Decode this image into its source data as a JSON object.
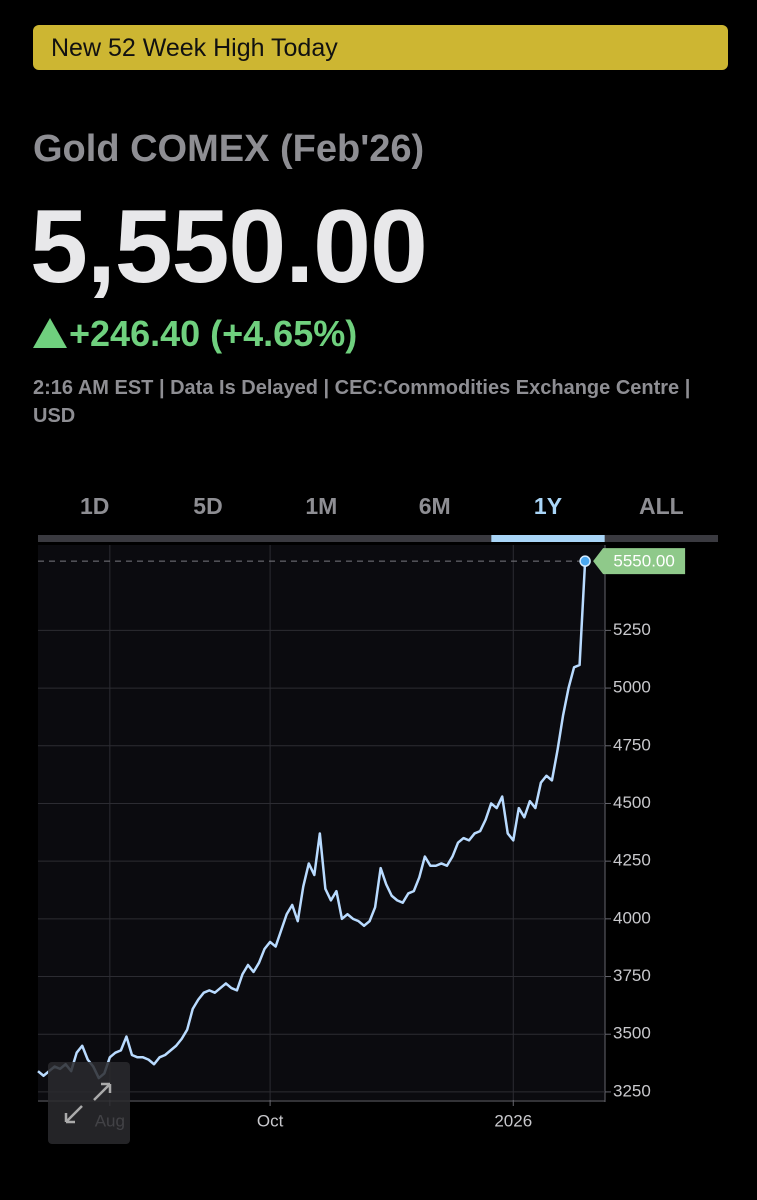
{
  "banner": "New 52 Week High Today",
  "title": "Gold COMEX (Feb'26)",
  "price": "5,550.00",
  "change": "+246.40 (+4.65%)",
  "info": "2:16 AM EST | Data Is Delayed | CEC:Commodities Exchange Centre | USD",
  "tabs": [
    "1D",
    "5D",
    "1M",
    "6M",
    "1Y",
    "ALL"
  ],
  "selected_tab": "1Y",
  "chart_data": {
    "type": "line",
    "color": "#b9dbff",
    "values": [
      3340,
      3320,
      3340,
      3360,
      3350,
      3370,
      3340,
      3420,
      3450,
      3390,
      3360,
      3310,
      3330,
      3400,
      3420,
      3430,
      3490,
      3410,
      3400,
      3400,
      3390,
      3370,
      3400,
      3410,
      3430,
      3450,
      3480,
      3520,
      3610,
      3650,
      3680,
      3690,
      3680,
      3700,
      3720,
      3700,
      3690,
      3760,
      3800,
      3770,
      3810,
      3870,
      3900,
      3880,
      3950,
      4020,
      4060,
      3990,
      4140,
      4240,
      4190,
      4370,
      4130,
      4080,
      4120,
      4000,
      4020,
      4000,
      3990,
      3970,
      3990,
      4050,
      4220,
      4150,
      4100,
      4080,
      4070,
      4110,
      4120,
      4180,
      4270,
      4230,
      4230,
      4240,
      4230,
      4270,
      4330,
      4350,
      4340,
      4370,
      4380,
      4430,
      4500,
      4480,
      4530,
      4370,
      4340,
      4480,
      4440,
      4510,
      4480,
      4590,
      4620,
      4600,
      4730,
      4880,
      5000,
      5090,
      5100,
      5550
    ],
    "last_value_label": "5550.00",
    "xlim": [
      0,
      102.6
    ],
    "xticks": [
      {
        "value": 13,
        "label": "Aug"
      },
      {
        "value": 42,
        "label": "Oct"
      },
      {
        "value": 86,
        "label": "2026"
      }
    ],
    "ylim": [
      3215,
      5620
    ],
    "yticks": [
      3250,
      3500,
      3750,
      4000,
      4250,
      4500,
      4750,
      5000,
      5250
    ],
    "grid": true
  }
}
